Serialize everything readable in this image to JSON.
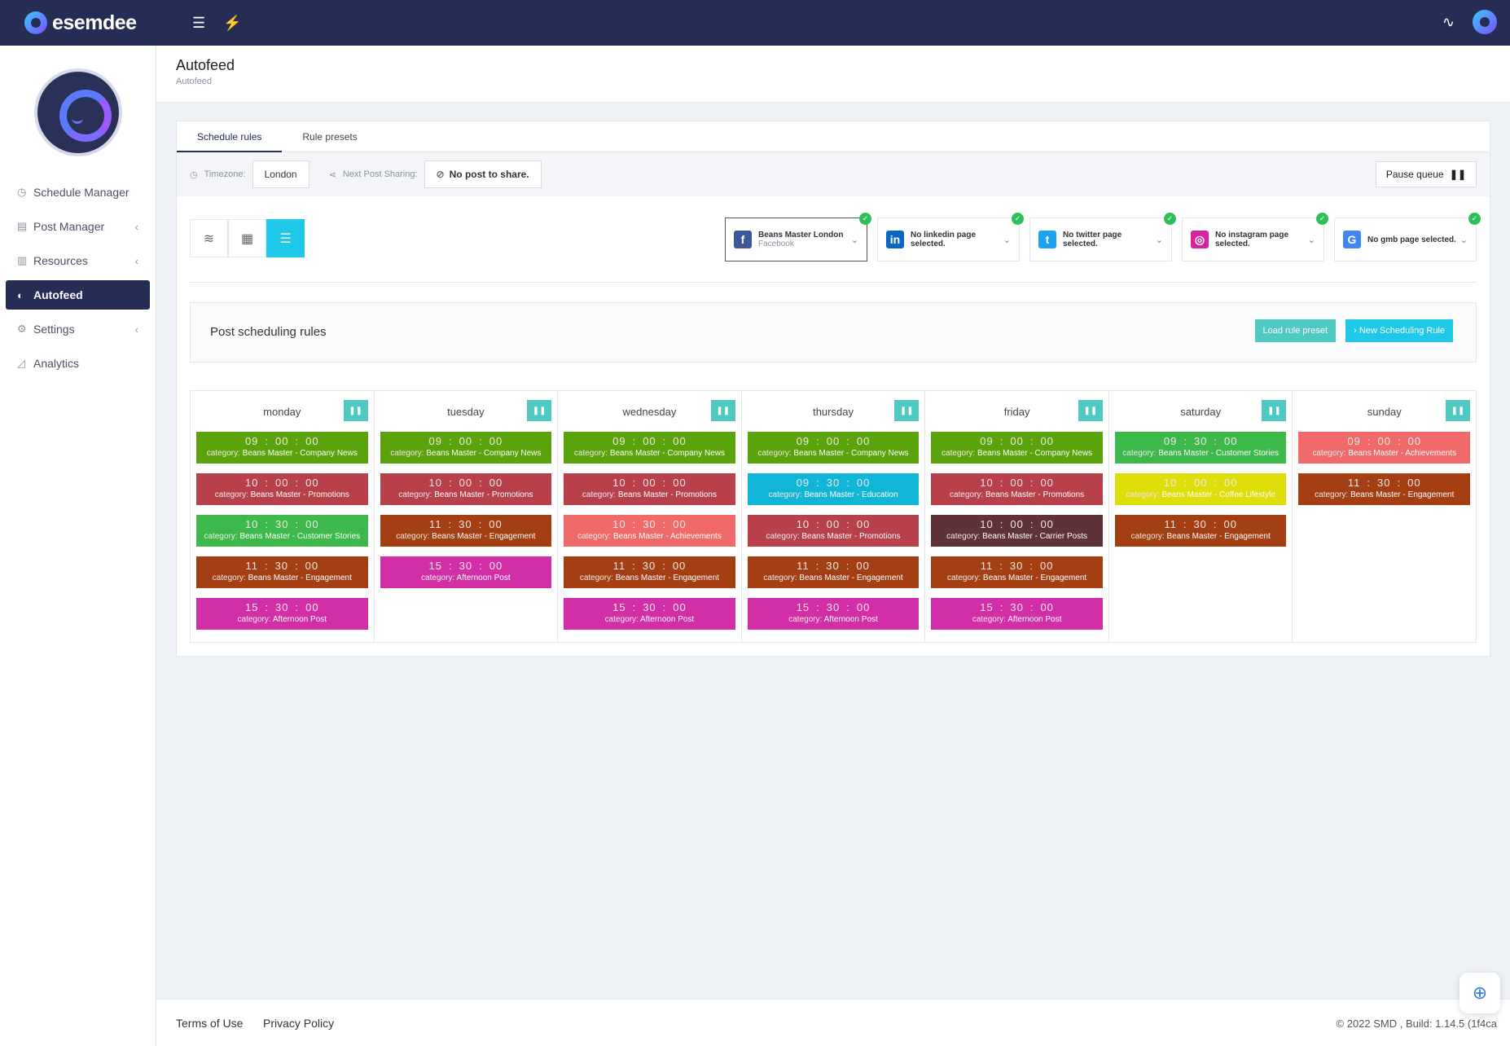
{
  "app": {
    "brand": "esemdee"
  },
  "topbar": {
    "menu_icon": "☰",
    "bolt_icon": "⚡",
    "pulse_icon": "∿"
  },
  "sidebar": {
    "items": [
      {
        "label": "Schedule Manager",
        "icon": "◷",
        "chevron": ""
      },
      {
        "label": "Post Manager",
        "icon": "▤",
        "chevron": "‹"
      },
      {
        "label": "Resources",
        "icon": "▥",
        "chevron": "‹"
      },
      {
        "label": "Autofeed",
        "icon": "◐",
        "chevron": ""
      },
      {
        "label": "Settings",
        "icon": "⚙",
        "chevron": "‹"
      },
      {
        "label": "Analytics",
        "icon": "◿",
        "chevron": ""
      }
    ]
  },
  "header": {
    "title": "Autofeed",
    "breadcrumb": "Autofeed"
  },
  "tabs": {
    "schedule": "Schedule rules",
    "presets": "Rule presets"
  },
  "toolbar": {
    "timezone_label": "Timezone:",
    "timezone_value": "London",
    "next_label": "Next Post Sharing:",
    "next_value": "No post to share.",
    "pause_label": "Pause queue"
  },
  "accounts": [
    {
      "name": "Beans Master London",
      "sub": "Facebook",
      "logo": "f",
      "color": "#3b5998"
    },
    {
      "name": "No linkedin page selected.",
      "sub": "",
      "logo": "in",
      "color": "#0a66c2"
    },
    {
      "name": "No twitter page selected.",
      "sub": "",
      "logo": "t",
      "color": "#1da1f2"
    },
    {
      "name": "No instagram page selected.",
      "sub": "",
      "logo": "◎",
      "color": "#d6249f"
    },
    {
      "name": "No gmb page selected.",
      "sub": "",
      "logo": "G",
      "color": "#4285f4"
    }
  ],
  "rules": {
    "title": "Post scheduling rules",
    "load_label": "Load rule preset",
    "new_label": "New Scheduling Rule"
  },
  "category_label": "category:",
  "days": [
    {
      "name": "monday",
      "slots": [
        {
          "h": "09",
          "m": "00",
          "s": "00",
          "cat": "Beans Master - Company News",
          "color": "#5aa30a"
        },
        {
          "h": "10",
          "m": "00",
          "s": "00",
          "cat": "Beans Master - Promotions",
          "color": "#b8404a"
        },
        {
          "h": "10",
          "m": "30",
          "s": "00",
          "cat": "Beans Master - Customer Stories",
          "color": "#3cb94a"
        },
        {
          "h": "11",
          "m": "30",
          "s": "00",
          "cat": "Beans Master - Engagement",
          "color": "#a33f12"
        },
        {
          "h": "15",
          "m": "30",
          "s": "00",
          "cat": "Afternoon Post",
          "color": "#d22fa6"
        }
      ]
    },
    {
      "name": "tuesday",
      "slots": [
        {
          "h": "09",
          "m": "00",
          "s": "00",
          "cat": "Beans Master - Company News",
          "color": "#5aa30a"
        },
        {
          "h": "10",
          "m": "00",
          "s": "00",
          "cat": "Beans Master - Promotions",
          "color": "#b8404a"
        },
        {
          "h": "11",
          "m": "30",
          "s": "00",
          "cat": "Beans Master - Engagement",
          "color": "#a33f12"
        },
        {
          "h": "15",
          "m": "30",
          "s": "00",
          "cat": "Afternoon Post",
          "color": "#d22fa6"
        }
      ]
    },
    {
      "name": "wednesday",
      "slots": [
        {
          "h": "09",
          "m": "00",
          "s": "00",
          "cat": "Beans Master - Company News",
          "color": "#5aa30a"
        },
        {
          "h": "10",
          "m": "00",
          "s": "00",
          "cat": "Beans Master - Promotions",
          "color": "#b8404a"
        },
        {
          "h": "10",
          "m": "30",
          "s": "00",
          "cat": "Beans Master - Achievements",
          "color": "#f06a6a"
        },
        {
          "h": "11",
          "m": "30",
          "s": "00",
          "cat": "Beans Master - Engagement",
          "color": "#a33f12"
        },
        {
          "h": "15",
          "m": "30",
          "s": "00",
          "cat": "Afternoon Post",
          "color": "#d22fa6"
        }
      ]
    },
    {
      "name": "thursday",
      "slots": [
        {
          "h": "09",
          "m": "00",
          "s": "00",
          "cat": "Beans Master - Company News",
          "color": "#5aa30a"
        },
        {
          "h": "09",
          "m": "30",
          "s": "00",
          "cat": "Beans Master - Education",
          "color": "#11b5d6"
        },
        {
          "h": "10",
          "m": "00",
          "s": "00",
          "cat": "Beans Master - Promotions",
          "color": "#b8404a"
        },
        {
          "h": "11",
          "m": "30",
          "s": "00",
          "cat": "Beans Master - Engagement",
          "color": "#a33f12"
        },
        {
          "h": "15",
          "m": "30",
          "s": "00",
          "cat": "Afternoon Post",
          "color": "#d22fa6"
        }
      ]
    },
    {
      "name": "friday",
      "slots": [
        {
          "h": "09",
          "m": "00",
          "s": "00",
          "cat": "Beans Master - Company News",
          "color": "#5aa30a"
        },
        {
          "h": "10",
          "m": "00",
          "s": "00",
          "cat": "Beans Master - Promotions",
          "color": "#b8404a"
        },
        {
          "h": "10",
          "m": "00",
          "s": "00",
          "cat": "Beans Master - Carrier Posts",
          "color": "#5e3237"
        },
        {
          "h": "11",
          "m": "30",
          "s": "00",
          "cat": "Beans Master - Engagement",
          "color": "#a33f12"
        },
        {
          "h": "15",
          "m": "30",
          "s": "00",
          "cat": "Afternoon Post",
          "color": "#d22fa6"
        }
      ]
    },
    {
      "name": "saturday",
      "slots": [
        {
          "h": "09",
          "m": "30",
          "s": "00",
          "cat": "Beans Master - Customer Stories",
          "color": "#3cb94a"
        },
        {
          "h": "10",
          "m": "00",
          "s": "00",
          "cat": "Beans Master - Coffee Lifestyle",
          "color": "#dede0a"
        },
        {
          "h": "11",
          "m": "30",
          "s": "00",
          "cat": "Beans Master - Engagement",
          "color": "#a33f12"
        }
      ]
    },
    {
      "name": "sunday",
      "slots": [
        {
          "h": "09",
          "m": "00",
          "s": "00",
          "cat": "Beans Master - Achievements",
          "color": "#f06a6a"
        },
        {
          "h": "11",
          "m": "30",
          "s": "00",
          "cat": "Beans Master - Engagement",
          "color": "#a33f12"
        }
      ]
    }
  ],
  "footer": {
    "terms": "Terms of Use",
    "privacy": "Privacy Policy",
    "copyright": "© 2022 SMD , Build: 1.14.5 (1f4ca"
  }
}
